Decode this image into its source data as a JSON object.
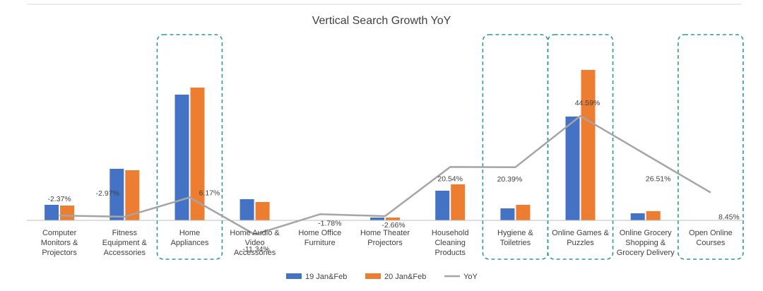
{
  "chart_data": {
    "type": "bar",
    "title": "Vertical Search Growth YoY",
    "categories": [
      "Computer Monitors & Projectors",
      "Fitness Equipment & Accessories",
      "Home Appliances",
      "Home Audio & Video Accessories",
      "Home Office Furniture",
      "Home Theater Projectors",
      "Household Cleaning Products",
      "Hygiene & Toiletries",
      "Online Games & Puzzles",
      "Online Grocery Shopping & Grocery Delivery",
      "Open Online Courses"
    ],
    "category_lines": [
      [
        "Computer",
        "Monitors &",
        "Projectors"
      ],
      [
        "Fitness",
        "Equipment &",
        "Accessories"
      ],
      [
        "Home",
        "Appliances"
      ],
      [
        "Home Audio &",
        "Video",
        "Accessories"
      ],
      [
        "Home Office",
        "Furniture"
      ],
      [
        "Home Theater",
        "Projectors"
      ],
      [
        "Household",
        "Cleaning",
        "Products"
      ],
      [
        "Hygiene &",
        "Toiletries"
      ],
      [
        "Online Games &",
        "Puzzles"
      ],
      [
        "Online Grocery",
        "Shopping &",
        "Grocery Delivery"
      ],
      [
        "Open Online",
        "Courses"
      ]
    ],
    "series": [
      {
        "name": "19 Jan&Feb",
        "kind": "bar",
        "color": "#4472C4",
        "values": [
          22,
          73,
          178,
          30,
          0,
          4,
          42,
          17,
          147,
          10,
          0
        ]
      },
      {
        "name": "20 Jan&Feb",
        "kind": "bar",
        "color": "#ED7D31",
        "values": [
          21,
          71,
          188,
          26,
          0,
          4,
          51,
          22,
          213,
          13,
          0
        ]
      },
      {
        "name": "YoY",
        "kind": "line",
        "color": "#A5A5A5",
        "values": [
          -2.37,
          -2.97,
          6.17,
          -11.34,
          -1.78,
          -2.66,
          20.54,
          20.39,
          44.59,
          26.51,
          8.45
        ],
        "labels": [
          "-2.37%",
          "-2.97%",
          "6.17%",
          "-11.34%",
          "-1.78%",
          "-2.66%",
          "20.54%",
          "20.39%",
          "44.59%",
          "26.51%",
          "8.45%"
        ]
      }
    ],
    "bar_ylim": [
      0,
      230
    ],
    "line_ylim": [
      -40,
      80
    ],
    "highlighted_categories": [
      "Home Appliances",
      "Hygiene & Toiletries",
      "Online Games & Puzzles",
      "Open Online Courses"
    ],
    "highlight_color": "#2E9C8C",
    "legend_position": "bottom",
    "grid": false
  }
}
